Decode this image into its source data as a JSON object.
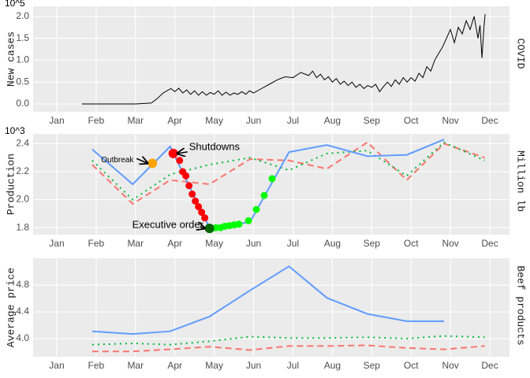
{
  "chart_data": [
    {
      "type": "line",
      "multiplier_label": "10^5",
      "ylabel": "New cases",
      "strip": "COVID",
      "xlim": [
        0.4,
        12.5
      ],
      "ylim": [
        -0.18,
        2.23
      ],
      "xticks": [
        {
          "value": 1,
          "label": "Jan"
        },
        {
          "value": 2,
          "label": "Feb"
        },
        {
          "value": 3,
          "label": "Mar"
        },
        {
          "value": 4,
          "label": "Apr"
        },
        {
          "value": 5,
          "label": "May"
        },
        {
          "value": 6,
          "label": "Jun"
        },
        {
          "value": 7,
          "label": "Jul"
        },
        {
          "value": 8,
          "label": "Aug"
        },
        {
          "value": 9,
          "label": "Sep"
        },
        {
          "value": 10,
          "label": "Oct"
        },
        {
          "value": 11,
          "label": "Nov"
        },
        {
          "value": 12,
          "label": "Dec"
        }
      ],
      "yticks": [
        {
          "value": 0,
          "label": "0.0"
        },
        0.5,
        {
          "value": 1,
          "label": "1.0"
        },
        1.5,
        {
          "value": 2,
          "label": "2.0"
        }
      ],
      "grid": true,
      "series": [
        {
          "color": "#000000",
          "style": "solid",
          "x": [
            1.64,
            3.0,
            3.4,
            3.55,
            3.7,
            3.8,
            3.9,
            4.0,
            4.1,
            4.2,
            4.3,
            4.4,
            4.5,
            4.6,
            4.7,
            4.8,
            4.9,
            5.0,
            5.1,
            5.2,
            5.3,
            5.4,
            5.5,
            5.6,
            5.7,
            5.8,
            5.9,
            6.0,
            6.2,
            6.4,
            6.6,
            6.8,
            7.0,
            7.2,
            7.4,
            7.5,
            7.6,
            7.7,
            7.8,
            7.9,
            8.0,
            8.1,
            8.2,
            8.3,
            8.4,
            8.5,
            8.6,
            8.7,
            8.8,
            8.9,
            9.0,
            9.1,
            9.2,
            9.3,
            9.4,
            9.5,
            9.6,
            9.7,
            9.8,
            9.9,
            10.0,
            10.1,
            10.2,
            10.3,
            10.4,
            10.5,
            10.6,
            10.7,
            10.8,
            10.9,
            11.0,
            11.1,
            11.2,
            11.3,
            11.4,
            11.5,
            11.6,
            11.7,
            11.75,
            11.8,
            11.85,
            11.88
          ],
          "values": [
            0,
            0,
            0.02,
            0.12,
            0.25,
            0.3,
            0.35,
            0.28,
            0.36,
            0.25,
            0.32,
            0.22,
            0.3,
            0.2,
            0.28,
            0.2,
            0.26,
            0.22,
            0.3,
            0.2,
            0.27,
            0.2,
            0.25,
            0.22,
            0.28,
            0.22,
            0.3,
            0.25,
            0.35,
            0.45,
            0.55,
            0.62,
            0.6,
            0.72,
            0.65,
            0.75,
            0.6,
            0.68,
            0.55,
            0.62,
            0.5,
            0.58,
            0.45,
            0.52,
            0.42,
            0.5,
            0.38,
            0.45,
            0.35,
            0.42,
            0.38,
            0.45,
            0.28,
            0.4,
            0.5,
            0.4,
            0.55,
            0.45,
            0.6,
            0.5,
            0.6,
            0.52,
            0.7,
            0.6,
            0.85,
            0.75,
            1.0,
            1.15,
            1.3,
            1.5,
            1.7,
            1.4,
            1.75,
            1.6,
            1.9,
            1.7,
            2.0,
            1.5,
            1.8,
            1.05,
            1.75,
            2.05
          ]
        }
      ]
    },
    {
      "type": "line",
      "multiplier_label": "10^3",
      "ylabel": "Production",
      "strip": "Million lb",
      "xlim": [
        0.4,
        12.5
      ],
      "ylim": [
        1.75,
        2.47
      ],
      "xticks": [
        {
          "value": 1,
          "label": "Jan"
        },
        {
          "value": 2,
          "label": "Feb"
        },
        {
          "value": 3,
          "label": "Mar"
        },
        {
          "value": 4,
          "label": "Apr"
        },
        {
          "value": 5,
          "label": "May"
        },
        {
          "value": 6,
          "label": "Jun"
        },
        {
          "value": 7,
          "label": "Jul"
        },
        {
          "value": 8,
          "label": "Aug"
        },
        {
          "value": 9,
          "label": "Sep"
        },
        {
          "value": 10,
          "label": "Oct"
        },
        {
          "value": 11,
          "label": "Nov"
        },
        {
          "value": 12,
          "label": "Dec"
        }
      ],
      "yticks": [
        1.8,
        {
          "value": 2,
          "label": "2.0"
        },
        2.2,
        2.4
      ],
      "grid": true,
      "series": [
        {
          "color": "#f8766d",
          "style": "dashed",
          "x": [
            1.9,
            2.93,
            3.88,
            4.88,
            5.91,
            6.9,
            7.86,
            8.89,
            9.89,
            10.84,
            11.87
          ],
          "values": [
            2.25,
            1.97,
            2.14,
            2.11,
            2.29,
            2.28,
            2.22,
            2.41,
            2.14,
            2.4,
            2.3
          ]
        },
        {
          "color": "#00ba38",
          "style": "dotted",
          "x": [
            1.9,
            2.93,
            3.88,
            4.88,
            5.91,
            6.9,
            7.86,
            8.89,
            9.89,
            10.84,
            11.87
          ],
          "values": [
            2.28,
            2.0,
            2.18,
            2.25,
            2.3,
            2.21,
            2.33,
            2.35,
            2.17,
            2.41,
            2.28
          ]
        },
        {
          "color": "#619cff",
          "style": "solid",
          "x": [
            1.9,
            2.93,
            3.88,
            4.88,
            5.91,
            6.9,
            7.86,
            8.89,
            9.89,
            10.84
          ],
          "values": [
            2.36,
            2.11,
            2.38,
            1.8,
            1.84,
            2.34,
            2.39,
            2.31,
            2.32,
            2.43
          ]
        },
        {
          "color": "#ff0000",
          "style": "points",
          "x": [
            3.96,
            4.12,
            4.2,
            4.28,
            4.36,
            4.44,
            4.52,
            4.6,
            4.68,
            4.76
          ],
          "values": [
            2.33,
            2.28,
            2.2,
            2.17,
            2.1,
            2.04,
            1.99,
            1.95,
            1.91,
            1.87
          ]
        },
        {
          "color": "#00ff00",
          "style": "points",
          "x": [
            4.92,
            5.04,
            5.16,
            5.27,
            5.39,
            5.51,
            5.63,
            5.87,
            6.07,
            6.27,
            6.47
          ],
          "values": [
            1.79,
            1.8,
            1.8,
            1.81,
            1.815,
            1.82,
            1.825,
            1.85,
            1.93,
            2.03,
            2.15
          ]
        }
      ],
      "annotations": [
        {
          "text": "Outbreak",
          "x": 3.43,
          "y": 2.26,
          "color": "#ffa500"
        },
        {
          "text": "Shutdowns",
          "x": 3.96,
          "y": 2.33,
          "color": "#ff0000"
        },
        {
          "text": "Executive order",
          "x": 4.88,
          "y": 1.795,
          "color": "#006400"
        }
      ]
    },
    {
      "type": "line",
      "ylabel": "Average price",
      "strip": "Beef products",
      "xlim": [
        0.4,
        12.5
      ],
      "ylim": [
        3.73,
        5.2
      ],
      "xticks": [
        {
          "value": 1,
          "label": "Jan"
        },
        {
          "value": 2,
          "label": "Feb"
        },
        {
          "value": 3,
          "label": "Mar"
        },
        {
          "value": 4,
          "label": "Apr"
        },
        {
          "value": 5,
          "label": "May"
        },
        {
          "value": 6,
          "label": "Jun"
        },
        {
          "value": 7,
          "label": "Jul"
        },
        {
          "value": 8,
          "label": "Aug"
        },
        {
          "value": 9,
          "label": "Sep"
        },
        {
          "value": 10,
          "label": "Oct"
        },
        {
          "value": 11,
          "label": "Nov"
        },
        {
          "value": 12,
          "label": "Dec"
        }
      ],
      "yticks": [
        {
          "value": 4,
          "label": "4.0"
        },
        4.4,
        4.8
      ],
      "grid": true,
      "series": [
        {
          "color": "#619cff",
          "style": "solid",
          "x": [
            1.9,
            2.93,
            3.88,
            4.88,
            5.91,
            6.9,
            7.86,
            8.89,
            9.89,
            10.84
          ],
          "values": [
            4.11,
            4.07,
            4.11,
            4.33,
            4.72,
            5.08,
            4.61,
            4.37,
            4.26,
            4.26
          ]
        },
        {
          "color": "#00ba38",
          "style": "dotted",
          "x": [
            1.9,
            2.93,
            3.88,
            4.88,
            5.91,
            6.9,
            7.86,
            8.89,
            9.89,
            10.84,
            11.87
          ],
          "values": [
            3.91,
            3.93,
            3.91,
            3.96,
            4.03,
            4.01,
            4.01,
            4.02,
            4.0,
            4.04,
            4.02
          ]
        },
        {
          "color": "#f8766d",
          "style": "dashed",
          "x": [
            1.9,
            2.93,
            3.88,
            4.88,
            5.91,
            6.9,
            7.86,
            8.89,
            9.89,
            10.84,
            11.87
          ],
          "values": [
            3.81,
            3.81,
            3.84,
            3.88,
            3.83,
            3.89,
            3.89,
            3.9,
            3.86,
            3.84,
            3.89
          ]
        }
      ]
    }
  ]
}
